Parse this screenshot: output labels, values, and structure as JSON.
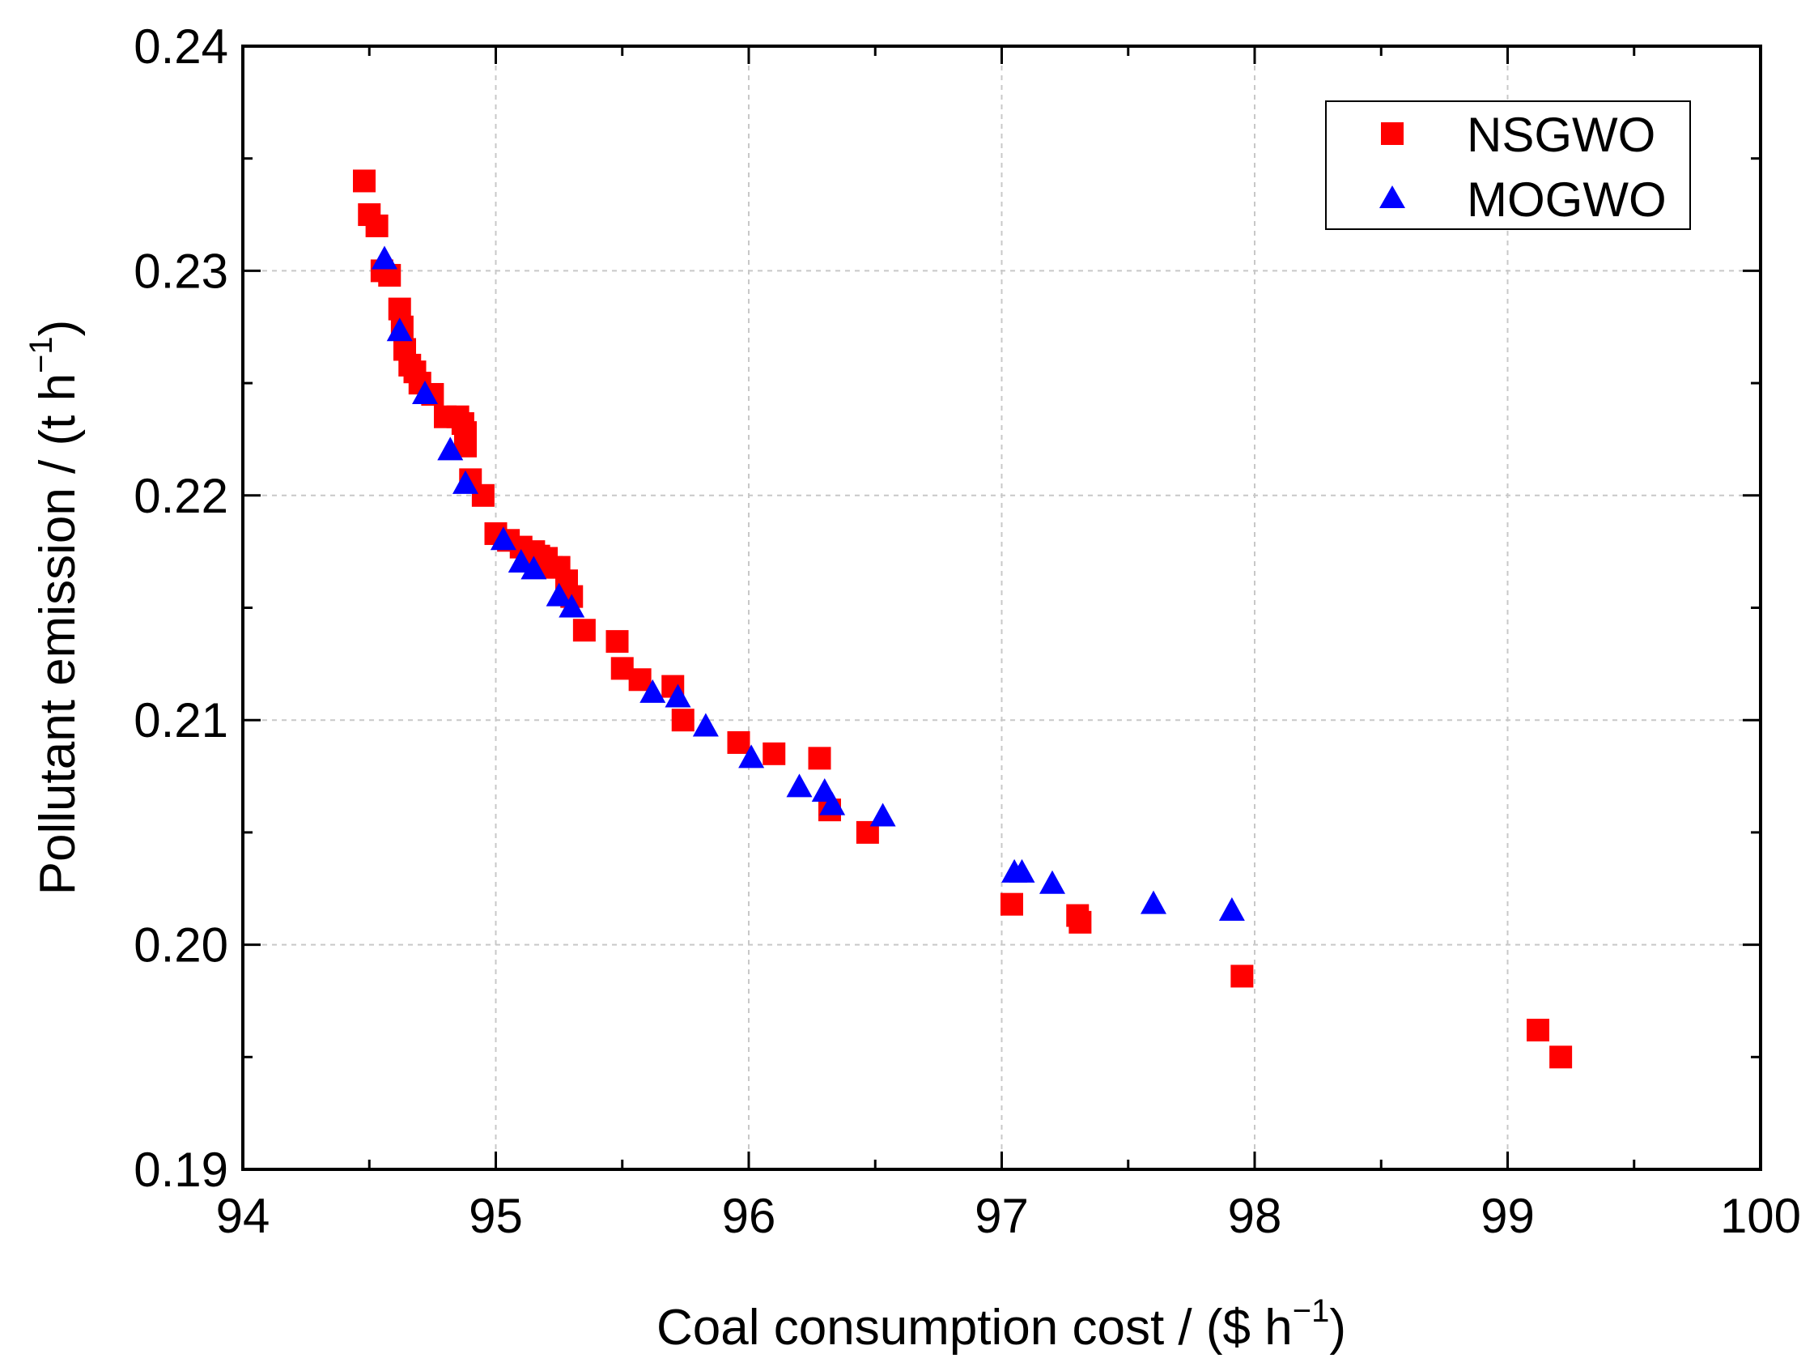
{
  "chart_data": {
    "type": "scatter",
    "title": "",
    "xlabel": "Coal consumption cost / ($ h",
    "xlabel_sup": "−1",
    "xlabel_end": ")",
    "ylabel": "Pollutant emission / (t h",
    "ylabel_sup": "−1",
    "ylabel_end": ")",
    "xlim": [
      94,
      100
    ],
    "ylim": [
      0.19,
      0.24
    ],
    "x_ticks": [
      "94",
      "95",
      "96",
      "97",
      "98",
      "99",
      "100"
    ],
    "y_ticks": [
      "0.19",
      "0.20",
      "0.21",
      "0.22",
      "0.23",
      "0.24"
    ],
    "grid": true,
    "legend_position": "top-right",
    "series": [
      {
        "name": "NSGWO",
        "marker": "square",
        "color": "#ff0000",
        "points": [
          [
            94.48,
            0.234
          ],
          [
            94.5,
            0.2325
          ],
          [
            94.53,
            0.232
          ],
          [
            94.55,
            0.23
          ],
          [
            94.58,
            0.2298
          ],
          [
            94.62,
            0.2283
          ],
          [
            94.63,
            0.2275
          ],
          [
            94.64,
            0.2265
          ],
          [
            94.66,
            0.2258
          ],
          [
            94.68,
            0.2255
          ],
          [
            94.7,
            0.225
          ],
          [
            94.75,
            0.2245
          ],
          [
            94.8,
            0.2235
          ],
          [
            94.85,
            0.2235
          ],
          [
            94.87,
            0.2232
          ],
          [
            94.88,
            0.2228
          ],
          [
            94.88,
            0.2222
          ],
          [
            94.9,
            0.2207
          ],
          [
            94.95,
            0.22
          ],
          [
            95.0,
            0.2183
          ],
          [
            95.05,
            0.218
          ],
          [
            95.1,
            0.2177
          ],
          [
            95.15,
            0.2175
          ],
          [
            95.17,
            0.2173
          ],
          [
            95.2,
            0.2172
          ],
          [
            95.22,
            0.2168
          ],
          [
            95.25,
            0.2168
          ],
          [
            95.28,
            0.2162
          ],
          [
            95.3,
            0.2155
          ],
          [
            95.35,
            0.214
          ],
          [
            95.48,
            0.2135
          ],
          [
            95.5,
            0.2123
          ],
          [
            95.57,
            0.2118
          ],
          [
            95.7,
            0.2115
          ],
          [
            95.74,
            0.21
          ],
          [
            95.96,
            0.209
          ],
          [
            96.1,
            0.2085
          ],
          [
            96.28,
            0.2083
          ],
          [
            96.32,
            0.206
          ],
          [
            96.47,
            0.205
          ],
          [
            97.04,
            0.2018
          ],
          [
            97.3,
            0.2013
          ],
          [
            97.31,
            0.201
          ],
          [
            97.95,
            0.1986
          ],
          [
            99.12,
            0.1962
          ],
          [
            99.21,
            0.195
          ]
        ]
      },
      {
        "name": "MOGWO",
        "marker": "triangle",
        "color": "#0000ff",
        "points": [
          [
            94.56,
            0.2305
          ],
          [
            94.62,
            0.2273
          ],
          [
            94.72,
            0.2245
          ],
          [
            94.82,
            0.222
          ],
          [
            94.88,
            0.2205
          ],
          [
            95.03,
            0.218
          ],
          [
            95.1,
            0.217
          ],
          [
            95.15,
            0.2167
          ],
          [
            95.25,
            0.2155
          ],
          [
            95.3,
            0.215
          ],
          [
            95.62,
            0.2112
          ],
          [
            95.72,
            0.211
          ],
          [
            95.83,
            0.2097
          ],
          [
            96.01,
            0.2083
          ],
          [
            96.2,
            0.207
          ],
          [
            96.3,
            0.2068
          ],
          [
            96.33,
            0.2062
          ],
          [
            96.53,
            0.2057
          ],
          [
            97.05,
            0.2032
          ],
          [
            97.08,
            0.2032
          ],
          [
            97.2,
            0.2027
          ],
          [
            97.6,
            0.2018
          ],
          [
            97.91,
            0.2015
          ]
        ]
      }
    ]
  }
}
